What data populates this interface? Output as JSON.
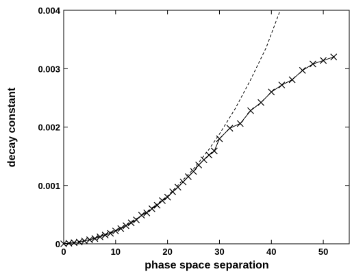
{
  "chart_data": {
    "type": "scatter",
    "title": "",
    "xlabel": "phase space separation",
    "ylabel": "decay constant",
    "xlim": [
      0,
      55
    ],
    "ylim": [
      0,
      0.004
    ],
    "x_ticks": [
      0,
      10,
      20,
      30,
      40,
      50
    ],
    "y_ticks": [
      0,
      0.001,
      0.002,
      0.003,
      0.004
    ],
    "x_tick_labels": [
      "0",
      "10",
      "20",
      "30",
      "40",
      "50"
    ],
    "y_tick_labels": [
      "0",
      "0.001",
      "0.002",
      "0.003",
      "0.004"
    ],
    "grid": false,
    "legend": "none",
    "series": [
      {
        "marker": "x",
        "line": "solid",
        "points": [
          [
            0,
            0
          ],
          [
            1,
            1e-05
          ],
          [
            2,
            2e-05
          ],
          [
            3,
            3e-05
          ],
          [
            4,
            5e-05
          ],
          [
            5,
            7e-05
          ],
          [
            6,
            9e-05
          ],
          [
            7,
            0.00012
          ],
          [
            8,
            0.00015
          ],
          [
            9,
            0.00018
          ],
          [
            10,
            0.00022
          ],
          [
            11,
            0.00026
          ],
          [
            12,
            0.00031
          ],
          [
            13,
            0.00036
          ],
          [
            14,
            0.00041
          ],
          [
            15,
            0.00049
          ],
          [
            16,
            0.00053
          ],
          [
            17,
            0.0006
          ],
          [
            18,
            0.00066
          ],
          [
            19,
            0.00074
          ],
          [
            20,
            0.0008
          ],
          [
            21,
            0.00089
          ],
          [
            22,
            0.00097
          ],
          [
            23,
            0.00106
          ],
          [
            24,
            0.00115
          ],
          [
            25,
            0.00124
          ],
          [
            26,
            0.00135
          ],
          [
            27,
            0.00144
          ],
          [
            28,
            0.00152
          ],
          [
            29,
            0.00159
          ],
          [
            30,
            0.0018
          ],
          [
            32,
            0.00198
          ],
          [
            34,
            0.00206
          ],
          [
            36,
            0.00228
          ],
          [
            38,
            0.00242
          ],
          [
            40,
            0.0026
          ],
          [
            42,
            0.00272
          ],
          [
            44,
            0.00281
          ],
          [
            46,
            0.00297
          ],
          [
            48,
            0.00308
          ],
          [
            50,
            0.00314
          ],
          [
            52,
            0.0032
          ]
        ]
      },
      {
        "marker": "none",
        "line": "dashed",
        "points": [
          [
            0,
            0
          ],
          [
            5,
            7e-05
          ],
          [
            10,
            0.00023
          ],
          [
            15,
            0.00048
          ],
          [
            20,
            0.00082
          ],
          [
            25,
            0.00128
          ],
          [
            28,
            0.00162
          ],
          [
            30,
            0.00188
          ],
          [
            33,
            0.00231
          ],
          [
            36,
            0.00281
          ],
          [
            39,
            0.00336
          ],
          [
            41.7,
            0.004
          ]
        ]
      }
    ]
  }
}
